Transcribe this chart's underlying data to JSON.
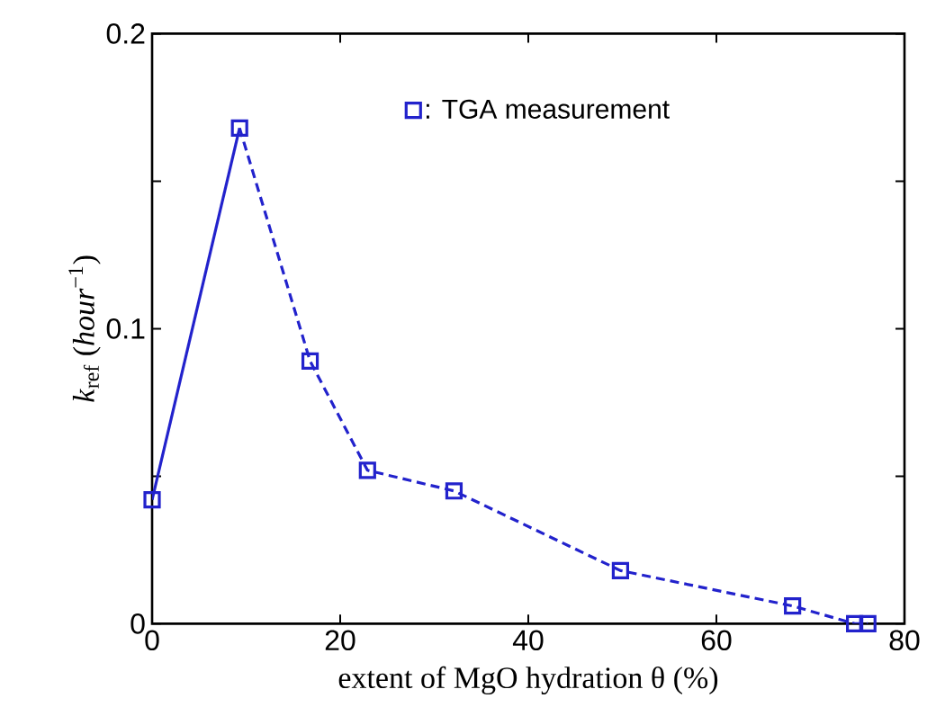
{
  "chart_data": {
    "type": "line",
    "xlabel": "extent of MgO hydration θ (%)",
    "ylabel": "*k*$_{ref}$ (*hour*$^{−1}$)",
    "xlim": [
      0,
      80
    ],
    "ylim": [
      0,
      0.2
    ],
    "xticks": [
      0,
      20,
      40,
      60,
      80
    ],
    "yticks": [
      0,
      {
        "value": 0.05,
        "label": null
      },
      0.1,
      {
        "value": 0.15,
        "label": null
      },
      0.2
    ],
    "legend": "top",
    "grid": false,
    "series": [
      {
        "line_style": "solid",
        "marker": "none",
        "color": "#2222cc",
        "x": [
          0,
          9.3
        ],
        "values": [
          0.042,
          0.168
        ]
      },
      {
        "line_style": "dashed",
        "marker": "none",
        "color": "#2222cc",
        "x": [
          9.3,
          16.8,
          22.9,
          32.1,
          49.8,
          68.1,
          74.7,
          76.1
        ],
        "values": [
          0.168,
          0.089,
          0.052,
          0.045,
          0.018,
          0.006,
          0.0,
          0.0
        ]
      },
      {
        "type": "scatter",
        "name": ": TGA measurement",
        "marker": "square",
        "color": "#2222cc",
        "x": [
          0,
          9.3,
          16.8,
          22.9,
          32.1,
          49.8,
          68.1,
          74.7,
          76.1
        ],
        "values": [
          0.042,
          0.168,
          0.089,
          0.052,
          0.045,
          0.018,
          0.006,
          0.0,
          0.0
        ]
      }
    ]
  }
}
